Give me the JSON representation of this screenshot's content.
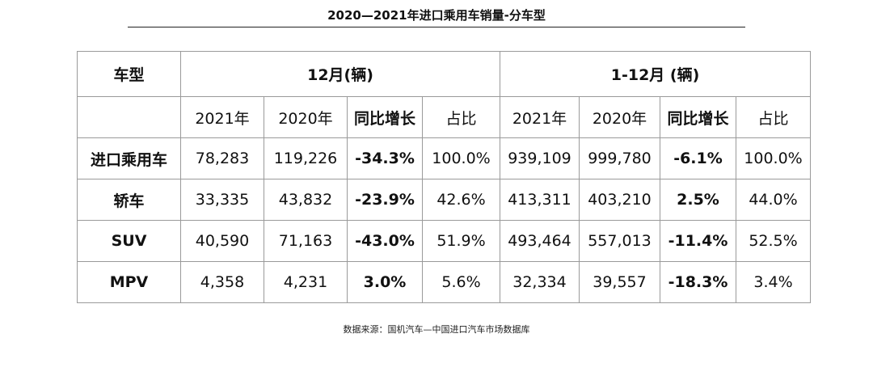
{
  "chart_data": {
    "type": "table",
    "title": "2020—2021年进口乘用车销量-分车型",
    "header": {
      "model_label": "车型",
      "group_month": "12月(辆)",
      "group_ytd": "1-12月 (辆)",
      "cols": [
        "2021年",
        "2020年",
        "同比增长",
        "占比"
      ]
    },
    "rows": [
      {
        "name": "进口乘用车",
        "m2021": "78,283",
        "m2020": "119,226",
        "m_yoy": "-34.3%",
        "m_share": "100.0%",
        "y2021": "939,109",
        "y2020": "999,780",
        "y_yoy": "-6.1%",
        "y_share": "100.0%"
      },
      {
        "name": "轿车",
        "m2021": "33,335",
        "m2020": "43,832",
        "m_yoy": "-23.9%",
        "m_share": "42.6%",
        "y2021": "413,311",
        "y2020": "403,210",
        "y_yoy": "2.5%",
        "y_share": "44.0%"
      },
      {
        "name": "SUV",
        "m2021": "40,590",
        "m2020": "71,163",
        "m_yoy": "-43.0%",
        "m_share": "51.9%",
        "y2021": "493,464",
        "y2020": "557,013",
        "y_yoy": "-11.4%",
        "y_share": "52.5%"
      },
      {
        "name": "MPV",
        "m2021": "4,358",
        "m2020": "4,231",
        "m_yoy": "3.0%",
        "m_share": "5.6%",
        "y2021": "32,334",
        "y2020": "39,557",
        "y_yoy": "-18.3%",
        "y_share": "3.4%"
      }
    ],
    "source": "数据来源：国机汽车—中国进口汽车市场数据库"
  }
}
